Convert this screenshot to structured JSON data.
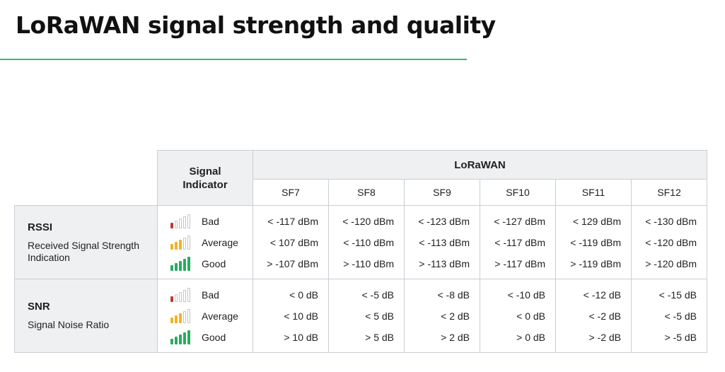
{
  "title": "LoRaWAN signal strength and quality",
  "table": {
    "signal_indicator_header": "Signal Indicator",
    "group_header": "LoRaWAN",
    "sf_columns": [
      "SF7",
      "SF8",
      "SF9",
      "SF10",
      "SF11",
      "SF12"
    ],
    "levels": [
      {
        "label": "Bad",
        "filled": 1,
        "color": "#c0392b"
      },
      {
        "label": "Average",
        "filled": 3,
        "color": "#f0b429"
      },
      {
        "label": "Good",
        "filled": 5,
        "color": "#27ae60"
      }
    ],
    "rows": [
      {
        "name": "RSSI",
        "description": "Received Signal Strength Indication",
        "values": [
          [
            "< -117 dBm",
            "< 107 dBm",
            "> -107 dBm"
          ],
          [
            "< -120 dBm",
            "< -110 dBm",
            "> -110 dBm"
          ],
          [
            "< -123 dBm",
            "< -113 dBm",
            "> -113 dBm"
          ],
          [
            "< -127 dBm",
            "< -117 dBm",
            "> -117 dBm"
          ],
          [
            "< 129 dBm",
            "< -119 dBm",
            "> -119 dBm"
          ],
          [
            "< -130 dBm",
            "< -120 dBm",
            "> -120 dBm"
          ]
        ]
      },
      {
        "name": "SNR",
        "description": "Signal Noise Ratio",
        "values": [
          [
            "< 0 dB",
            "< 10 dB",
            "> 10 dB"
          ],
          [
            "< -5 dB",
            "< 5 dB",
            "> 5 dB"
          ],
          [
            "< -8 dB",
            "< 2 dB",
            "> 2 dB"
          ],
          [
            "< -10 dB",
            "< 0 dB",
            "> 0 dB"
          ],
          [
            "< -12 dB",
            "< -2 dB",
            "> -2 dB"
          ],
          [
            "< -15 dB",
            "< -5 dB",
            "> -5 dB"
          ]
        ]
      }
    ]
  }
}
